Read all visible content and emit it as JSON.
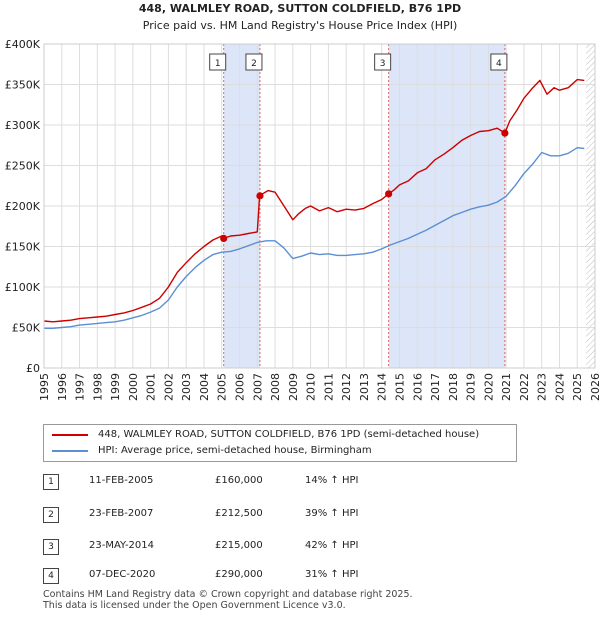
{
  "chart_data": {
    "type": "line",
    "title": "448, WALMLEY ROAD, SUTTON COLDFIELD, B76 1PD",
    "subtitle": "Price paid vs. HM Land Registry's House Price Index (HPI)",
    "ylim": [
      0,
      400000
    ],
    "xlim": [
      1995,
      2026
    ],
    "y_ticks": [
      0,
      50000,
      100000,
      150000,
      200000,
      250000,
      300000,
      350000,
      400000
    ],
    "y_tick_labels": [
      "£0",
      "£50K",
      "£100K",
      "£150K",
      "£200K",
      "£250K",
      "£300K",
      "£350K",
      "£400K"
    ],
    "x_ticks": [
      1995,
      1996,
      1997,
      1998,
      1999,
      2000,
      2001,
      2002,
      2003,
      2004,
      2005,
      2006,
      2007,
      2008,
      2009,
      2010,
      2011,
      2012,
      2013,
      2014,
      2015,
      2016,
      2017,
      2018,
      2019,
      2020,
      2021,
      2022,
      2023,
      2024,
      2025,
      2026
    ],
    "series": [
      {
        "name": "448, WALMLEY ROAD, SUTTON COLDFIELD, B76 1PD (semi-detached house)",
        "color": "#cc0000",
        "x": [
          1995.0,
          1995.5,
          1996.0,
          1996.5,
          1997.0,
          1997.5,
          1998.0,
          1998.5,
          1999.0,
          1999.5,
          2000.0,
          2000.5,
          2001.0,
          2001.5,
          2002.0,
          2002.5,
          2003.0,
          2003.5,
          2004.0,
          2004.5,
          2005.0,
          2005.11,
          2005.5,
          2006.0,
          2006.5,
          2007.0,
          2007.13,
          2007.3,
          2007.6,
          2008.0,
          2008.5,
          2009.0,
          2009.3,
          2009.7,
          2010.0,
          2010.5,
          2011.0,
          2011.5,
          2012.0,
          2012.5,
          2013.0,
          2013.5,
          2014.0,
          2014.39,
          2014.7,
          2015.0,
          2015.5,
          2016.0,
          2016.5,
          2017.0,
          2017.5,
          2018.0,
          2018.5,
          2019.0,
          2019.5,
          2020.0,
          2020.5,
          2020.93,
          2021.2,
          2021.6,
          2022.0,
          2022.5,
          2022.9,
          2023.3,
          2023.7,
          2024.0,
          2024.5,
          2025.0,
          2025.4
        ],
        "values": [
          58000,
          57000,
          58000,
          59000,
          61000,
          62000,
          63000,
          64000,
          66000,
          68000,
          71000,
          75000,
          79000,
          86000,
          100000,
          118000,
          130000,
          141000,
          150000,
          158000,
          163000,
          160000,
          163000,
          164000,
          166000,
          168000,
          212500,
          215000,
          219000,
          217000,
          200000,
          183000,
          190000,
          197000,
          200000,
          194000,
          198000,
          193000,
          196000,
          195000,
          197000,
          203000,
          208000,
          215000,
          220000,
          226000,
          231000,
          241000,
          246000,
          257000,
          264000,
          272000,
          281000,
          287000,
          292000,
          293000,
          296000,
          290000,
          305000,
          318000,
          333000,
          346000,
          355000,
          338000,
          346000,
          343000,
          346000,
          356000,
          355000
        ]
      },
      {
        "name": "HPI: Average price, semi-detached house, Birmingham",
        "color": "#5b8fd4",
        "x": [
          1995.0,
          1995.5,
          1996.0,
          1996.5,
          1997.0,
          1997.5,
          1998.0,
          1998.5,
          1999.0,
          1999.5,
          2000.0,
          2000.5,
          2001.0,
          2001.5,
          2002.0,
          2002.5,
          2003.0,
          2003.5,
          2004.0,
          2004.5,
          2005.0,
          2005.5,
          2006.0,
          2006.5,
          2007.0,
          2007.5,
          2008.0,
          2008.5,
          2009.0,
          2009.5,
          2010.0,
          2010.5,
          2011.0,
          2011.5,
          2012.0,
          2012.5,
          2013.0,
          2013.5,
          2014.0,
          2014.5,
          2015.0,
          2015.5,
          2016.0,
          2016.5,
          2017.0,
          2017.5,
          2018.0,
          2018.5,
          2019.0,
          2019.5,
          2020.0,
          2020.5,
          2021.0,
          2021.5,
          2022.0,
          2022.5,
          2023.0,
          2023.5,
          2024.0,
          2024.5,
          2025.0,
          2025.4
        ],
        "values": [
          49000,
          49000,
          50000,
          51000,
          53000,
          54000,
          55000,
          56000,
          57000,
          59000,
          62000,
          65000,
          69000,
          74000,
          84000,
          100000,
          113000,
          124000,
          133000,
          140000,
          143000,
          144000,
          147000,
          151000,
          155000,
          157000,
          157000,
          148000,
          135000,
          138000,
          142000,
          140000,
          141000,
          139000,
          139000,
          140000,
          141000,
          143000,
          147000,
          152000,
          156000,
          160000,
          165000,
          170000,
          176000,
          182000,
          188000,
          192000,
          196000,
          199000,
          201000,
          205000,
          212000,
          225000,
          240000,
          252000,
          266000,
          262000,
          262000,
          265000,
          272000,
          271000
        ]
      }
    ],
    "sales": [
      {
        "num": "1",
        "x": 2005.11,
        "price": 160000
      },
      {
        "num": "2",
        "x": 2007.15,
        "price": 212500
      },
      {
        "num": "3",
        "x": 2014.39,
        "price": 215000
      },
      {
        "num": "4",
        "x": 2020.93,
        "price": 290000
      }
    ],
    "shaded_periods": [
      [
        2005.11,
        2007.15
      ],
      [
        2014.39,
        2020.93
      ]
    ],
    "hatch_from": 2025.5
  },
  "legend": {
    "property_label": "448, WALMLEY ROAD, SUTTON COLDFIELD, B76 1PD (semi-detached house)",
    "hpi_label": "HPI: Average price, semi-detached house, Birmingham"
  },
  "sales_table": [
    {
      "num": "1",
      "date": "11-FEB-2005",
      "price": "£160,000",
      "hpi": "14% ↑ HPI"
    },
    {
      "num": "2",
      "date": "23-FEB-2007",
      "price": "£212,500",
      "hpi": "39% ↑ HPI"
    },
    {
      "num": "3",
      "date": "23-MAY-2014",
      "price": "£215,000",
      "hpi": "42% ↑ HPI"
    },
    {
      "num": "4",
      "date": "07-DEC-2020",
      "price": "£290,000",
      "hpi": "31% ↑ HPI"
    }
  ],
  "footer": {
    "line1": "Contains HM Land Registry data © Crown copyright and database right 2025.",
    "line2": "This data is licensed under the Open Government Licence v3.0."
  },
  "colors": {
    "property": "#cc0000",
    "hpi": "#5b8fd4",
    "shade": "#dde6f8",
    "grid": "#dddddd"
  }
}
